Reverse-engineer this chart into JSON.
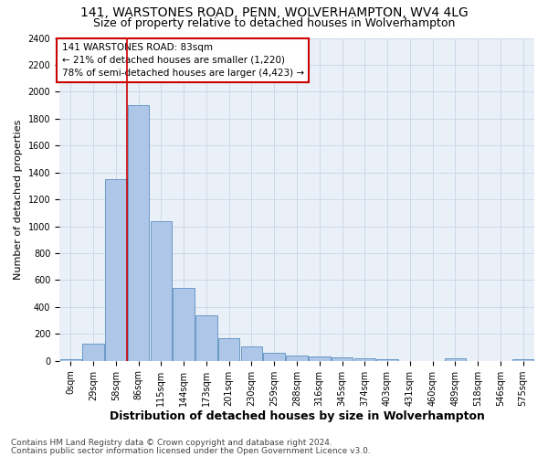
{
  "title1": "141, WARSTONES ROAD, PENN, WOLVERHAMPTON, WV4 4LG",
  "title2": "Size of property relative to detached houses in Wolverhampton",
  "xlabel": "Distribution of detached houses by size in Wolverhampton",
  "ylabel": "Number of detached properties",
  "footer1": "Contains HM Land Registry data © Crown copyright and database right 2024.",
  "footer2": "Contains public sector information licensed under the Open Government Licence v3.0.",
  "annotation_line1": "141 WARSTONES ROAD: 83sqm",
  "annotation_line2": "← 21% of detached houses are smaller (1,220)",
  "annotation_line3": "78% of semi-detached houses are larger (4,423) →",
  "bar_labels": [
    "0sqm",
    "29sqm",
    "58sqm",
    "86sqm",
    "115sqm",
    "144sqm",
    "173sqm",
    "201sqm",
    "230sqm",
    "259sqm",
    "288sqm",
    "316sqm",
    "345sqm",
    "374sqm",
    "403sqm",
    "431sqm",
    "460sqm",
    "489sqm",
    "518sqm",
    "546sqm",
    "575sqm"
  ],
  "bar_values": [
    10,
    125,
    1350,
    1900,
    1040,
    545,
    335,
    165,
    110,
    60,
    40,
    30,
    25,
    20,
    15,
    0,
    0,
    20,
    0,
    0,
    10
  ],
  "bar_color": "#aec6e8",
  "bar_edge_color": "#5a8fc0",
  "vline_x": 2.5,
  "vline_color": "#cc0000",
  "ylim_max": 2400,
  "yticks": [
    0,
    200,
    400,
    600,
    800,
    1000,
    1200,
    1400,
    1600,
    1800,
    2000,
    2200,
    2400
  ],
  "grid_color": "#d0d8e8",
  "bg_color": "#eaf0f8",
  "annotation_box_edge_color": "#cc0000",
  "title_fontsize": 10,
  "subtitle_fontsize": 9,
  "ylabel_fontsize": 8,
  "xlabel_fontsize": 9,
  "tick_fontsize": 7,
  "annot_fontsize": 7.5,
  "footer_fontsize": 6.5
}
